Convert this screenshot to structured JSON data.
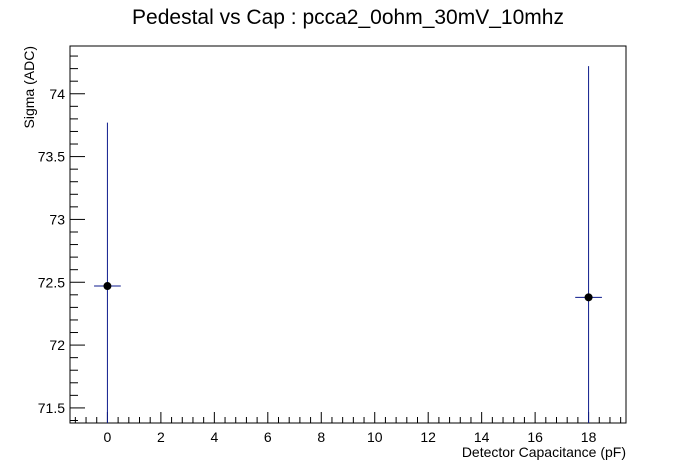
{
  "chart_data": {
    "type": "scatter",
    "title": "Pedestal vs Cap : pcca2_0ohm_30mV_10mhz",
    "xlabel": "Detector Capacitance (pF)",
    "ylabel": "Sigma (ADC)",
    "xlim": [
      -1.4,
      19.4
    ],
    "ylim": [
      71.38,
      74.38
    ],
    "x_ticks": [
      0,
      2,
      4,
      6,
      8,
      10,
      12,
      14,
      16,
      18
    ],
    "y_ticks": [
      71.5,
      72,
      72.5,
      73,
      73.5,
      74
    ],
    "x_tick_labels": [
      "0",
      "2",
      "4",
      "6",
      "8",
      "10",
      "12",
      "14",
      "16",
      "18"
    ],
    "y_tick_labels": [
      "71.5",
      "72",
      "72.5",
      "73",
      "73.5",
      "74"
    ],
    "grid": false,
    "legend": "none",
    "marker_color": "#000000",
    "error_bar_color": "#0d1a8c",
    "points": [
      {
        "x": 0,
        "y": 72.47,
        "x_err": 0.5,
        "y_err_low": 1.3,
        "y_err_high": 1.3
      },
      {
        "x": 18,
        "y": 72.38,
        "x_err": 0.5,
        "y_err_low": 1.84,
        "y_err_high": 1.84
      }
    ]
  }
}
